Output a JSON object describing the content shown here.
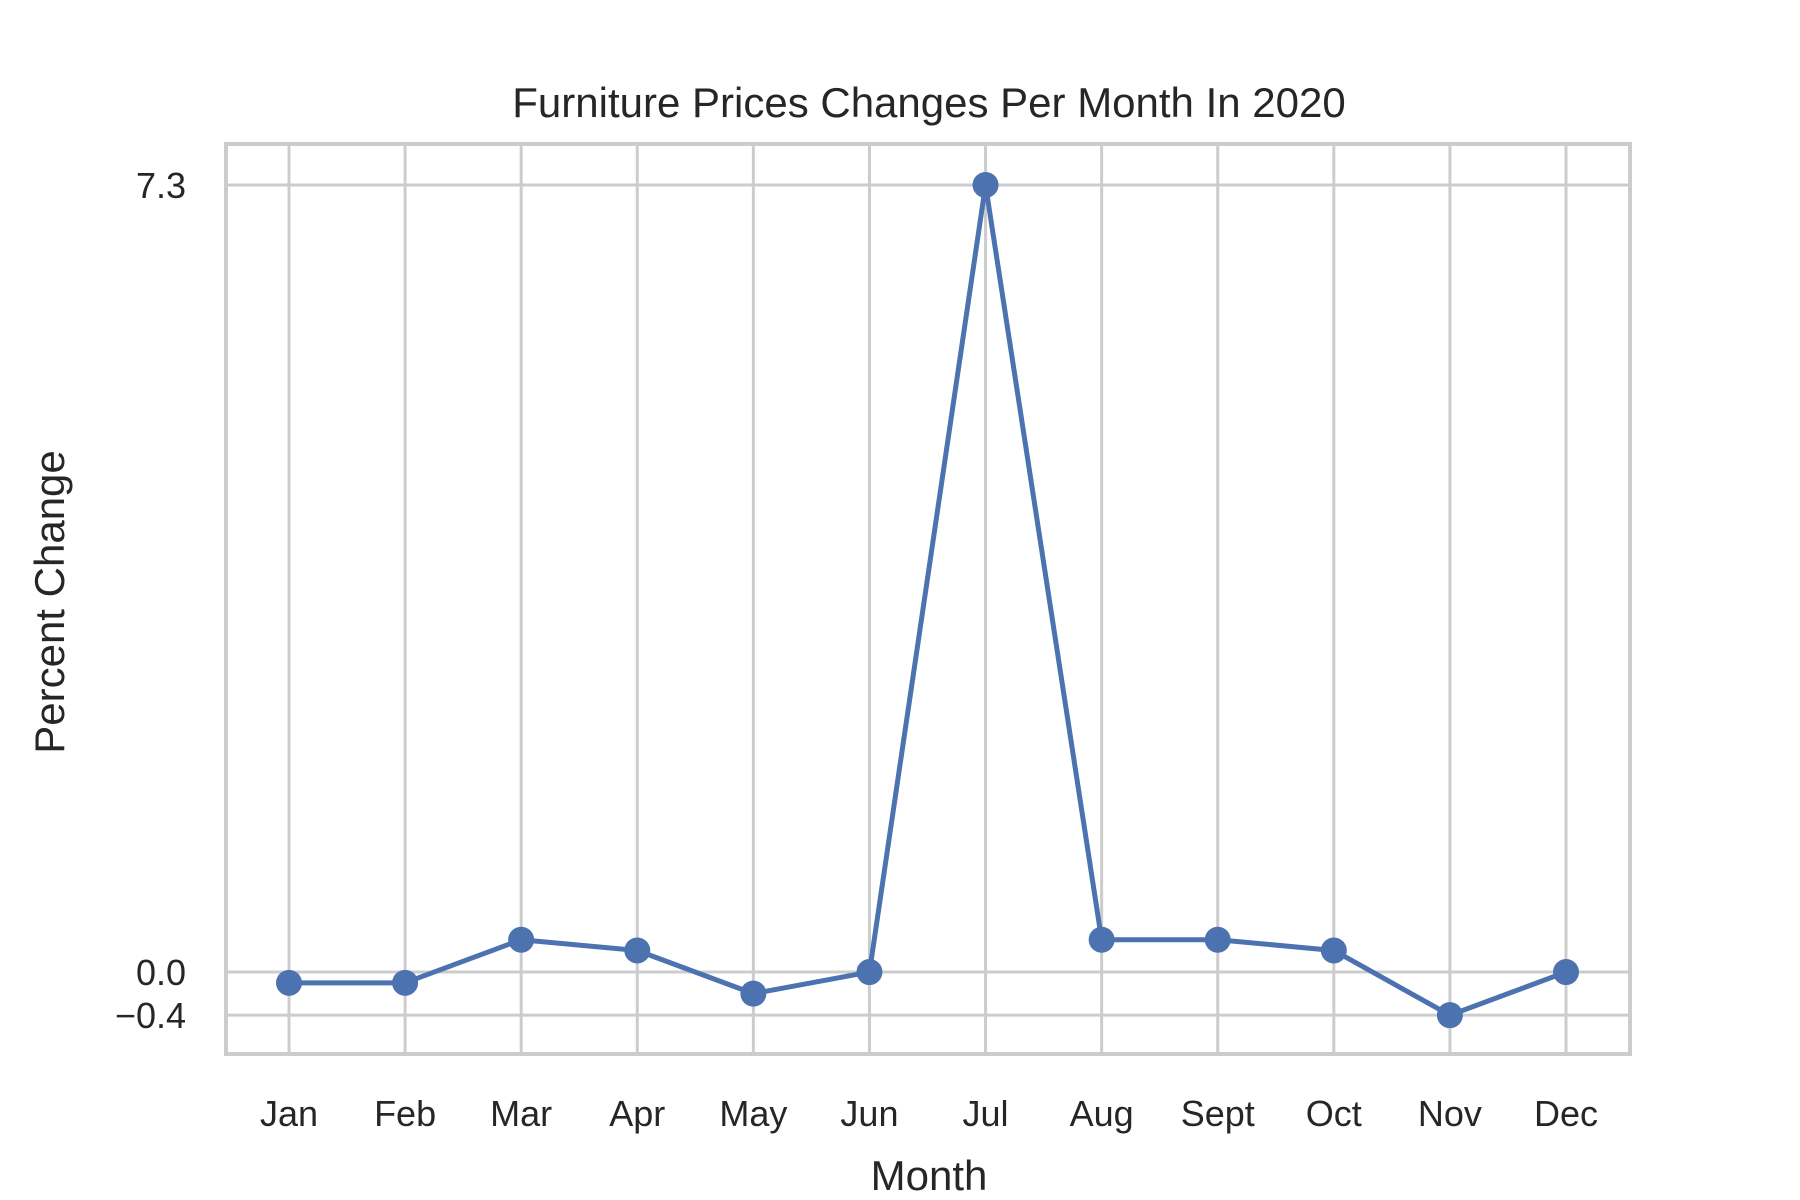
{
  "chart_data": {
    "type": "line",
    "title": "Furniture Prices Changes Per Month In 2020",
    "xlabel": "Month",
    "ylabel": "Percent Change",
    "categories": [
      "Jan",
      "Feb",
      "Mar",
      "Apr",
      "May",
      "Jun",
      "Jul",
      "Aug",
      "Sept",
      "Oct",
      "Nov",
      "Dec"
    ],
    "values": [
      -0.1,
      -0.1,
      0.3,
      0.2,
      -0.2,
      0.0,
      7.3,
      0.3,
      0.3,
      0.2,
      -0.4,
      0.0
    ],
    "yticks": [
      -0.4,
      0.0,
      7.3
    ],
    "ytick_labels": [
      "−0.4",
      "0.0",
      "7.3"
    ],
    "ylim": [
      -0.76,
      7.68
    ],
    "grid": true,
    "line_color": "#4c72b0",
    "grid_color": "#cccccc"
  }
}
